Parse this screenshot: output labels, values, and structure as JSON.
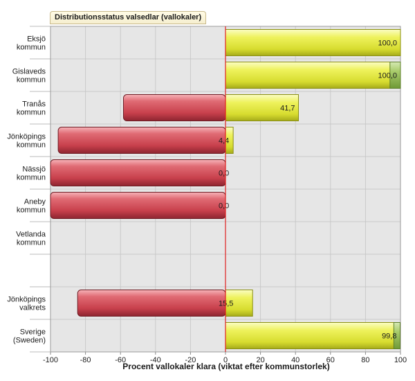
{
  "chart_data": {
    "type": "bar",
    "orientation": "horizontal",
    "title": "Distributionsstatus valsedlar (vallokaler)",
    "xlabel": "Procent vallokaler klara (viktat efter kommunstorlek)",
    "xlim": [
      -100,
      100
    ],
    "xticks": [
      -100,
      -80,
      -60,
      -40,
      -20,
      0,
      20,
      40,
      60,
      80,
      100
    ],
    "grid": true,
    "categories": [
      {
        "label": [
          "Eksjö",
          "kommun"
        ],
        "negative": 0,
        "positive": 100,
        "green_part": 0,
        "value_label": "100,0"
      },
      {
        "label": [
          "Gislaveds",
          "kommun"
        ],
        "negative": 0,
        "positive": 100,
        "green_part": 6,
        "value_label": "100,0"
      },
      {
        "label": [
          "Tranås",
          "kommun"
        ],
        "negative": -58.3,
        "positive": 41.7,
        "green_part": 0,
        "value_label": "41,7"
      },
      {
        "label": [
          "Jönköpings",
          "kommun"
        ],
        "negative": -95.6,
        "positive": 4.4,
        "green_part": 0,
        "value_label": "4,4"
      },
      {
        "label": [
          "Nässjö",
          "kommun"
        ],
        "negative": -100,
        "positive": 0,
        "green_part": 0,
        "value_label": "0,0"
      },
      {
        "label": [
          "Aneby",
          "kommun"
        ],
        "negative": -100,
        "positive": 0,
        "green_part": 0,
        "value_label": "0,0"
      },
      {
        "label": [
          "Vetlanda",
          "kommun"
        ],
        "negative": null,
        "positive": null,
        "green_part": 0,
        "value_label": ""
      },
      {
        "label": [],
        "negative": null,
        "positive": null,
        "green_part": 0,
        "value_label": ""
      },
      {
        "label": [
          "Jönköpings",
          "valkrets"
        ],
        "negative": -84.5,
        "positive": 15.5,
        "green_part": 0,
        "value_label": "15,5"
      },
      {
        "label": [
          "Sverige",
          "(Sweden)"
        ],
        "negative": 0,
        "positive": 99.8,
        "green_part": 3.6,
        "value_label": "99,8"
      }
    ],
    "colors": {
      "negative": "#d9505b",
      "positive": "#e8ec4a",
      "green": "#9cc25e",
      "zero_line": "#e02020",
      "plot_bg": "#e6e6e6",
      "grid": "#c9c9c9"
    }
  }
}
